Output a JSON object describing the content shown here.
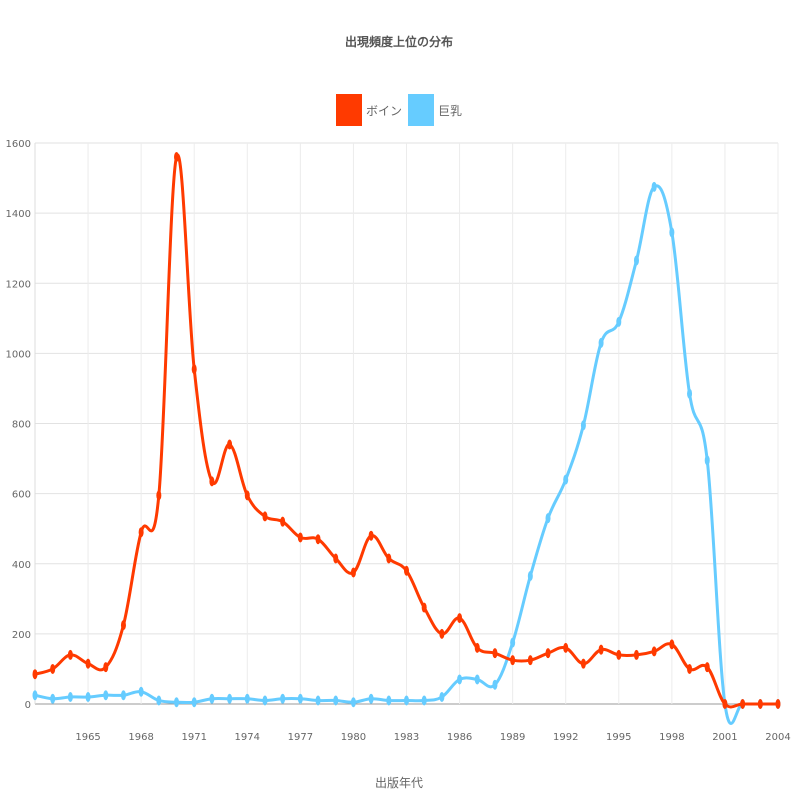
{
  "chart_data": {
    "type": "line",
    "title": "出現頻度上位の分布",
    "xlabel": "出版年代",
    "ylabel": "",
    "xlim": [
      1962,
      2004
    ],
    "ylim": [
      0,
      1600
    ],
    "yticks": [
      0,
      200,
      400,
      600,
      800,
      1000,
      1200,
      1400,
      1600
    ],
    "xticks": [
      1965,
      1968,
      1971,
      1974,
      1977,
      1980,
      1983,
      1986,
      1989,
      1992,
      1995,
      1998,
      2001,
      2004
    ],
    "grid": true,
    "legend_position": "top-center",
    "x": [
      1962,
      1963,
      1964,
      1965,
      1966,
      1967,
      1968,
      1969,
      1970,
      1971,
      1972,
      1973,
      1974,
      1975,
      1976,
      1977,
      1978,
      1979,
      1980,
      1981,
      1982,
      1983,
      1984,
      1985,
      1986,
      1987,
      1988,
      1989,
      1990,
      1991,
      1992,
      1993,
      1994,
      1995,
      1996,
      1997,
      1998,
      1999,
      2000,
      2001,
      2002,
      2003,
      2004
    ],
    "series": [
      {
        "name": "ボイン",
        "color": "#ff3a00",
        "values": [
          85,
          100,
          140,
          115,
          105,
          225,
          490,
          595,
          1560,
          955,
          635,
          740,
          595,
          535,
          520,
          475,
          470,
          415,
          375,
          480,
          415,
          380,
          275,
          200,
          245,
          160,
          145,
          125,
          125,
          145,
          160,
          115,
          155,
          140,
          140,
          150,
          170,
          100,
          105,
          0,
          0,
          0,
          0
        ]
      },
      {
        "name": "巨乳",
        "color": "#66ccff",
        "values": [
          25,
          15,
          20,
          20,
          25,
          25,
          35,
          10,
          5,
          5,
          15,
          15,
          15,
          10,
          15,
          15,
          10,
          10,
          5,
          15,
          10,
          10,
          10,
          20,
          70,
          70,
          55,
          175,
          365,
          530,
          640,
          795,
          1030,
          1090,
          1265,
          1475,
          1345,
          885,
          695,
          0,
          0,
          0,
          0
        ]
      }
    ]
  }
}
